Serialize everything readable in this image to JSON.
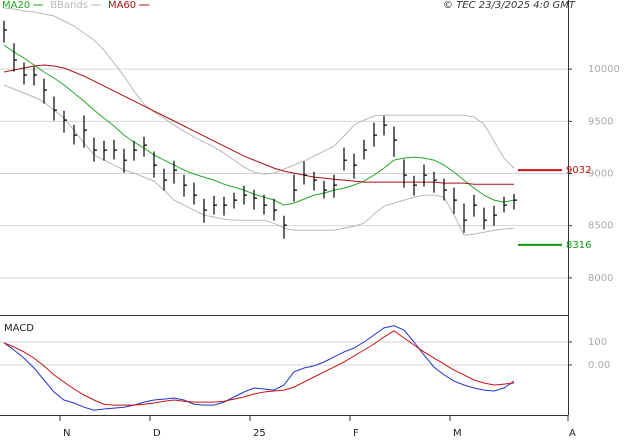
{
  "chart_data": [
    {
      "type": "ohlc",
      "timestamp": "© TEC 23/3/2025 4:0 GMT",
      "categories": [
        null,
        null,
        null,
        null,
        null,
        null,
        "N",
        null,
        null,
        null,
        null,
        null,
        null,
        null,
        null,
        "D",
        null,
        null,
        null,
        null,
        null,
        null,
        null,
        null,
        null,
        "25",
        null,
        null,
        null,
        null,
        null,
        null,
        null,
        null,
        null,
        "F",
        null,
        null,
        null,
        null,
        null,
        null,
        null,
        null,
        null,
        "M",
        null,
        null,
        null,
        null,
        null,
        null
      ],
      "x_end_label": "A",
      "color": "#000000",
      "high": [
        10465,
        10248,
        10064,
        10024,
        9910,
        9738,
        9602,
        9468,
        9556,
        9344,
        9314,
        9324,
        9238,
        9314,
        9352,
        9211,
        9047,
        9123,
        8989,
        8913,
        8759,
        8787,
        8777,
        8815,
        8883,
        8844,
        8797,
        8759,
        8595,
        8991,
        9115,
        9017,
        8931,
        8989,
        9248,
        9191,
        9324,
        9488,
        9554,
        9450,
        9135,
        8979,
        9085,
        9017,
        8951,
        8865,
        8713,
        8797,
        8673,
        8691,
        8777,
        8805
      ],
      "low": [
        10255,
        9978,
        9854,
        9844,
        9670,
        9508,
        9392,
        9278,
        9246,
        9114,
        9124,
        9134,
        9008,
        9124,
        9162,
        8961,
        8837,
        8903,
        8779,
        8703,
        8529,
        8607,
        8597,
        8665,
        8703,
        8654,
        8607,
        8549,
        8375,
        8731,
        8895,
        8837,
        8761,
        8769,
        9028,
        8951,
        9134,
        9258,
        9364,
        9160,
        8865,
        8789,
        8875,
        8817,
        8741,
        8615,
        8433,
        8587,
        8463,
        8501,
        8627,
        8655
      ],
      "close": [
        10375,
        10088,
        9944,
        9944,
        9800,
        9608,
        9512,
        9368,
        9416,
        9224,
        9224,
        9224,
        9128,
        9224,
        9272,
        9081,
        8937,
        9033,
        8889,
        8793,
        8649,
        8697,
        8697,
        8745,
        8793,
        8764,
        8697,
        8649,
        8505,
        8841,
        8985,
        8937,
        8841,
        8889,
        9128,
        9081,
        9224,
        9368,
        9464,
        9320,
        8985,
        8889,
        8985,
        8937,
        8841,
        8745,
        8553,
        8697,
        8553,
        8601,
        8697,
        8745
      ],
      "series": [
        {
          "name": "MA20",
          "color": "#22aa22",
          "values": [
            10231,
            10164,
            10107,
            10040,
            9973,
            9915,
            9848,
            9771,
            9694,
            9608,
            9531,
            9455,
            9368,
            9301,
            9244,
            9177,
            9129,
            9081,
            9033,
            8994,
            8966,
            8937,
            8898,
            8870,
            8841,
            8803,
            8774,
            8745,
            8697,
            8716,
            8755,
            8793,
            8812,
            8841,
            8860,
            8889,
            8927,
            8985,
            9052,
            9129,
            9148,
            9157,
            9148,
            9129,
            9081,
            9014,
            8937,
            8860,
            8793,
            8745,
            8726,
            8745
          ]
        },
        {
          "name": "BBands",
          "color": "#b8b8b8",
          "upper": [
            10586,
            10577,
            10558,
            10548,
            10529,
            10510,
            10462,
            10414,
            10347,
            10279,
            10184,
            10059,
            9934,
            9790,
            9666,
            9589,
            9531,
            9464,
            9407,
            9349,
            9301,
            9253,
            9196,
            9129,
            9061,
            9014,
            8994,
            9004,
            9042,
            9081,
            9119,
            9167,
            9215,
            9263,
            9359,
            9464,
            9512,
            9551,
            9560,
            9560,
            9560,
            9560,
            9560,
            9560,
            9560,
            9560,
            9560,
            9541,
            9474,
            9311,
            9148,
            9052
          ],
          "lower": [
            9848,
            9810,
            9771,
            9733,
            9685,
            9608,
            9531,
            9416,
            9292,
            9177,
            9129,
            9081,
            9033,
            9004,
            8966,
            8927,
            8841,
            8745,
            8697,
            8649,
            8601,
            8582,
            8563,
            8553,
            8553,
            8553,
            8553,
            8524,
            8476,
            8457,
            8457,
            8457,
            8457,
            8457,
            8476,
            8496,
            8524,
            8611,
            8687,
            8716,
            8745,
            8774,
            8793,
            8793,
            8774,
            8601,
            8409,
            8419,
            8438,
            8457,
            8467,
            8476
          ]
        },
        {
          "name": "MA60",
          "color": "#aa1111",
          "values": [
            9973,
            9992,
            10011,
            10030,
            10040,
            10030,
            10011,
            9973,
            9934,
            9886,
            9838,
            9790,
            9742,
            9694,
            9646,
            9598,
            9551,
            9503,
            9455,
            9407,
            9359,
            9311,
            9263,
            9215,
            9167,
            9129,
            9090,
            9052,
            9023,
            9004,
            8985,
            8966,
            8956,
            8946,
            8937,
            8927,
            8918,
            8918,
            8918,
            8918,
            8918,
            8918,
            8918,
            8918,
            8908,
            8908,
            8908,
            8898,
            8898,
            8898,
            8898,
            8898
          ]
        }
      ],
      "levels": [
        {
          "value": 9032,
          "color": "#cc1111"
        },
        {
          "value": 8316,
          "color": "#119911"
        }
      ],
      "ylim": [
        7644,
        10663
      ],
      "yticks": [
        8000,
        8500,
        9000,
        9500,
        10000
      ],
      "grid": true
    },
    {
      "type": "line",
      "title": "MACD",
      "series": [
        {
          "color": "#2233cc",
          "values": [
            96,
            65,
            30,
            -13,
            -65,
            -117,
            -152,
            -165,
            -183,
            -196,
            -191,
            -187,
            -183,
            -174,
            -161,
            -152,
            -148,
            -143,
            -152,
            -170,
            -174,
            -174,
            -161,
            -139,
            -117,
            -100,
            -104,
            -109,
            -87,
            -30,
            -13,
            -4,
            13,
            35,
            57,
            74,
            100,
            130,
            161,
            170,
            152,
            100,
            43,
            -9,
            -43,
            -70,
            -87,
            -100,
            -109,
            -113,
            -100,
            -70
          ]
        },
        {
          "color": "#cc1111",
          "values": [
            96,
            78,
            57,
            30,
            -4,
            -43,
            -74,
            -104,
            -130,
            -152,
            -170,
            -174,
            -174,
            -174,
            -170,
            -165,
            -157,
            -152,
            -157,
            -161,
            -161,
            -161,
            -157,
            -148,
            -139,
            -126,
            -117,
            -113,
            -109,
            -96,
            -74,
            -52,
            -30,
            -9,
            13,
            39,
            65,
            91,
            122,
            148,
            117,
            87,
            57,
            30,
            4,
            -22,
            -43,
            -65,
            -78,
            -87,
            -83,
            -78
          ]
        }
      ],
      "ylim": [
        -217,
        204
      ],
      "yticks": [
        {
          "value": 0,
          "label": "0.00"
        },
        100
      ],
      "grid": true
    }
  ]
}
